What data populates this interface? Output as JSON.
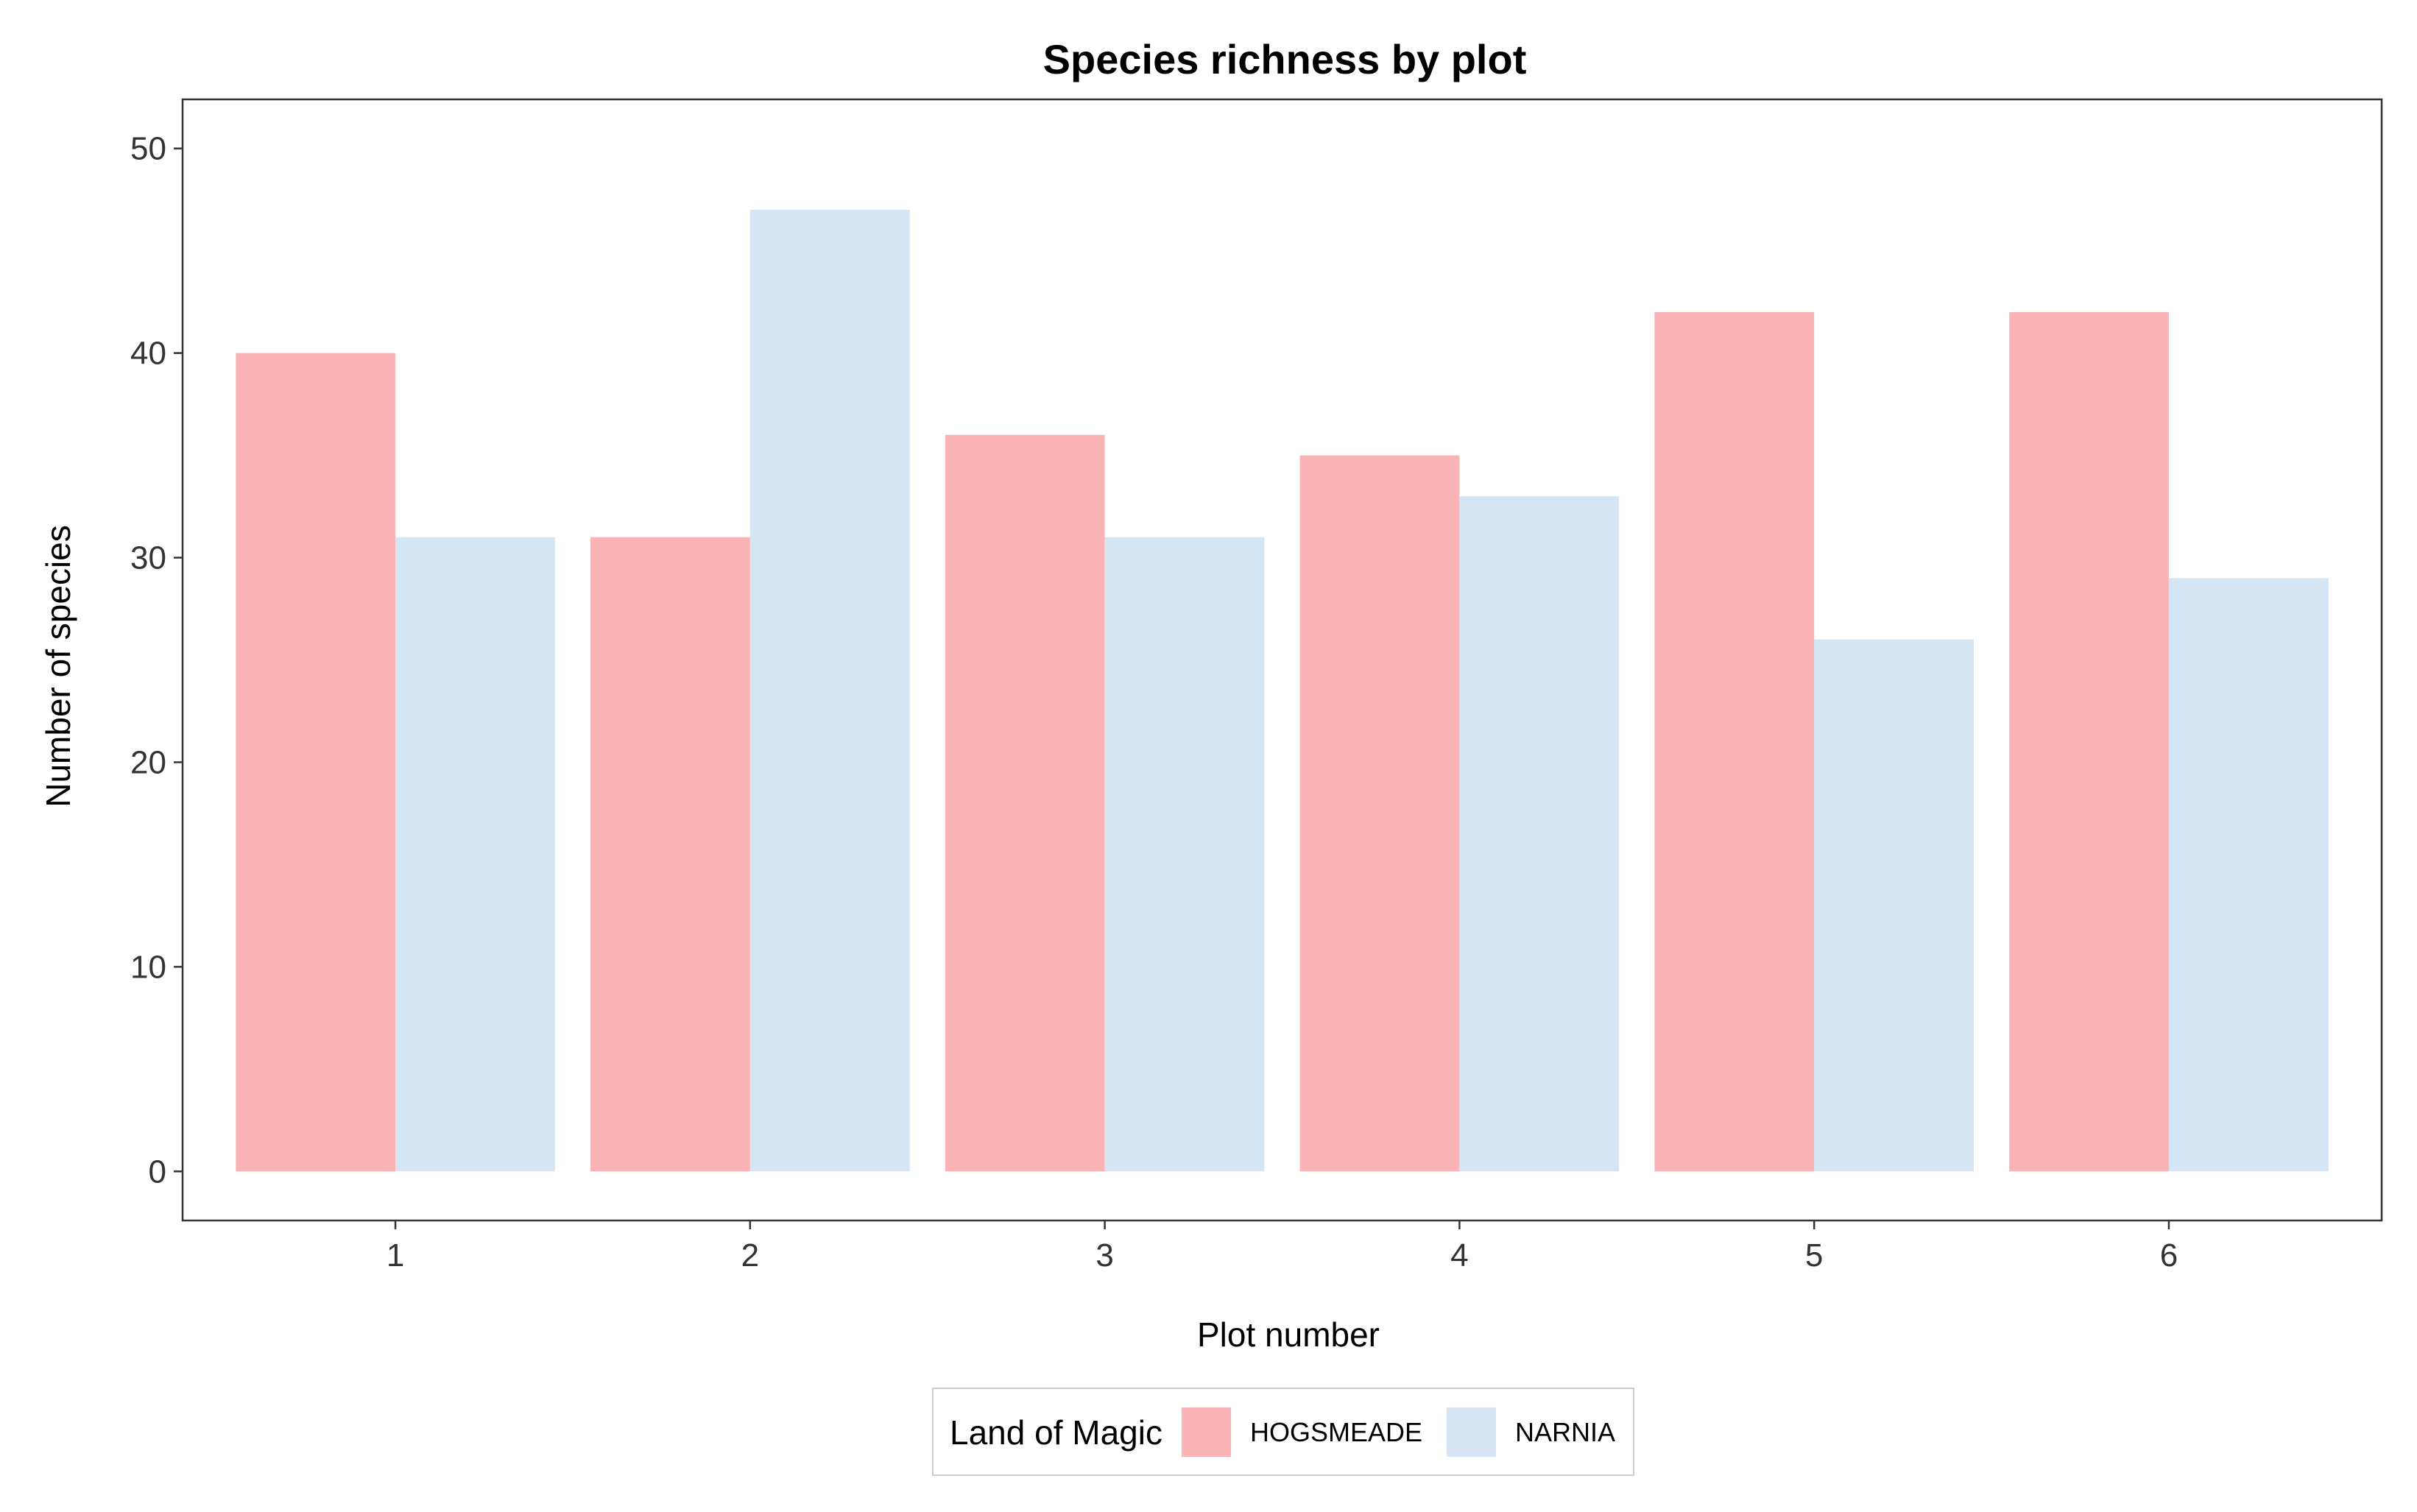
{
  "chart_data": {
    "type": "bar",
    "title": "Species richness by plot",
    "xlabel": "Plot number",
    "ylabel": "Number of species",
    "categories": [
      "1",
      "2",
      "3",
      "4",
      "5",
      "6"
    ],
    "series": [
      {
        "name": "HOGSMEADE",
        "color": "#FBB4B5",
        "values": [
          40,
          31,
          36,
          35,
          42,
          42
        ]
      },
      {
        "name": "NARNIA",
        "color": "#D6E5F4",
        "values": [
          31,
          47,
          31,
          33,
          26,
          29
        ]
      }
    ],
    "ylim": [
      -2.4,
      52.4
    ],
    "yticks": [
      0,
      10,
      20,
      30,
      40,
      50
    ],
    "ytick_labels": [
      "0",
      "10",
      "20",
      "30",
      "40",
      "50"
    ],
    "grid": false,
    "legend": {
      "title": "Land of Magic",
      "position": "bottom"
    }
  }
}
